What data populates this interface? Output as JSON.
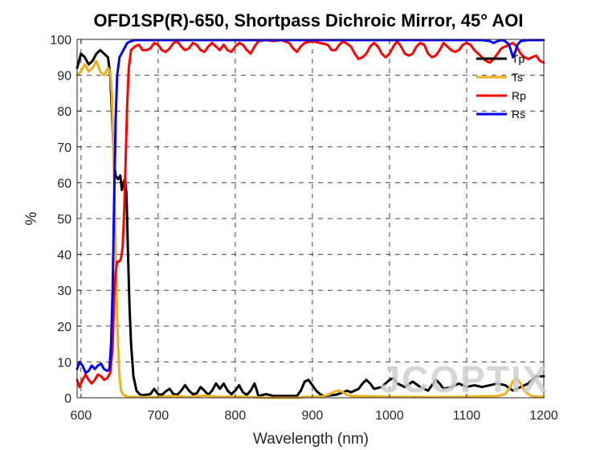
{
  "chart_data": {
    "type": "line",
    "title": "OFD1SP(R)-650, Shortpass Dichroic Mirror, 45° AOI",
    "xlabel": "Wavelength (nm)",
    "ylabel": "%",
    "xlim": [
      595,
      1200
    ],
    "ylim": [
      0,
      100
    ],
    "x_ticks": [
      600,
      700,
      800,
      900,
      1000,
      1100,
      1200
    ],
    "y_ticks": [
      0,
      10,
      20,
      30,
      40,
      50,
      60,
      70,
      80,
      90,
      100
    ],
    "grid": "dashed",
    "legend_position": "top-right",
    "watermark": "JCOPTIX",
    "series": [
      {
        "name": "Tp",
        "color": "#000000",
        "points": [
          [
            595,
            92
          ],
          [
            600,
            96
          ],
          [
            605,
            95
          ],
          [
            610,
            93
          ],
          [
            615,
            94
          ],
          [
            620,
            96
          ],
          [
            625,
            97
          ],
          [
            630,
            96
          ],
          [
            635,
            95
          ],
          [
            638,
            90
          ],
          [
            641,
            75
          ],
          [
            643,
            65
          ],
          [
            645,
            62
          ],
          [
            648,
            61
          ],
          [
            651,
            62
          ],
          [
            653,
            58
          ],
          [
            655,
            60
          ],
          [
            657,
            61
          ],
          [
            659,
            57
          ],
          [
            661,
            40
          ],
          [
            663,
            25
          ],
          [
            665,
            15
          ],
          [
            668,
            6
          ],
          [
            672,
            2
          ],
          [
            676,
            1
          ],
          [
            680,
            0.7
          ],
          [
            690,
            1
          ],
          [
            695,
            2.5
          ],
          [
            700,
            1
          ],
          [
            705,
            0.8
          ],
          [
            710,
            1.8
          ],
          [
            715,
            2.5
          ],
          [
            720,
            1
          ],
          [
            725,
            0.8
          ],
          [
            730,
            2
          ],
          [
            735,
            3.5
          ],
          [
            740,
            2
          ],
          [
            745,
            1
          ],
          [
            750,
            1.2
          ],
          [
            755,
            3
          ],
          [
            760,
            2
          ],
          [
            765,
            0.8
          ],
          [
            770,
            2
          ],
          [
            775,
            4
          ],
          [
            780,
            2.5
          ],
          [
            785,
            4
          ],
          [
            790,
            2
          ],
          [
            795,
            1
          ],
          [
            800,
            2
          ],
          [
            805,
            3.5
          ],
          [
            810,
            1.5
          ],
          [
            815,
            0.8
          ],
          [
            820,
            2
          ],
          [
            825,
            4
          ],
          [
            828,
            2
          ],
          [
            830,
            0.5
          ],
          [
            840,
            1
          ],
          [
            850,
            0.5
          ],
          [
            880,
            0.5
          ],
          [
            885,
            2
          ],
          [
            890,
            4.5
          ],
          [
            895,
            5
          ],
          [
            900,
            3.5
          ],
          [
            905,
            2
          ],
          [
            910,
            1
          ],
          [
            915,
            0.5
          ],
          [
            930,
            0.8
          ],
          [
            940,
            1.5
          ],
          [
            945,
            2
          ],
          [
            950,
            1.5
          ],
          [
            960,
            2.5
          ],
          [
            965,
            4
          ],
          [
            970,
            5
          ],
          [
            975,
            4
          ],
          [
            980,
            2.5
          ],
          [
            990,
            3
          ],
          [
            1000,
            5
          ],
          [
            1005,
            5.5
          ],
          [
            1010,
            4
          ],
          [
            1020,
            3
          ],
          [
            1030,
            4.5
          ],
          [
            1040,
            3
          ],
          [
            1050,
            2
          ],
          [
            1055,
            3.5
          ],
          [
            1060,
            5
          ],
          [
            1065,
            4
          ],
          [
            1070,
            2.5
          ],
          [
            1080,
            3
          ],
          [
            1090,
            4
          ],
          [
            1100,
            3
          ],
          [
            1110,
            3.5
          ],
          [
            1120,
            3
          ],
          [
            1130,
            3.5
          ],
          [
            1140,
            4
          ],
          [
            1150,
            3.5
          ],
          [
            1160,
            2
          ],
          [
            1170,
            3
          ],
          [
            1180,
            4
          ],
          [
            1190,
            6
          ],
          [
            1200,
            6
          ]
        ]
      },
      {
        "name": "Ts",
        "color": "#EDB120",
        "points": [
          [
            595,
            90
          ],
          [
            600,
            91
          ],
          [
            605,
            93
          ],
          [
            610,
            91
          ],
          [
            615,
            92
          ],
          [
            620,
            94
          ],
          [
            625,
            91
          ],
          [
            630,
            90
          ],
          [
            635,
            92
          ],
          [
            638,
            91
          ],
          [
            640,
            85
          ],
          [
            642,
            70
          ],
          [
            644,
            50
          ],
          [
            646,
            30
          ],
          [
            648,
            15
          ],
          [
            650,
            6
          ],
          [
            652,
            2
          ],
          [
            655,
            0.8
          ],
          [
            660,
            0.3
          ],
          [
            680,
            0.2
          ],
          [
            700,
            0.2
          ],
          [
            720,
            0.5
          ],
          [
            740,
            0.2
          ],
          [
            760,
            0.6
          ],
          [
            780,
            0.2
          ],
          [
            800,
            0.4
          ],
          [
            820,
            0.2
          ],
          [
            840,
            0
          ],
          [
            880,
            0
          ],
          [
            895,
            0.3
          ],
          [
            910,
            0.3
          ],
          [
            920,
            0.8
          ],
          [
            930,
            1.8
          ],
          [
            935,
            2
          ],
          [
            940,
            1.5
          ],
          [
            945,
            0.8
          ],
          [
            950,
            0.5
          ],
          [
            1000,
            0.3
          ],
          [
            1050,
            0.2
          ],
          [
            1100,
            0.3
          ],
          [
            1140,
            0.5
          ],
          [
            1150,
            1
          ],
          [
            1155,
            2.5
          ],
          [
            1160,
            4.5
          ],
          [
            1165,
            5.5
          ],
          [
            1170,
            4
          ],
          [
            1175,
            2
          ],
          [
            1180,
            1
          ],
          [
            1185,
            0.4
          ],
          [
            1200,
            0.3
          ]
        ]
      },
      {
        "name": "Rp",
        "color": "#FF0000",
        "points": [
          [
            595,
            5
          ],
          [
            598,
            3
          ],
          [
            602,
            5
          ],
          [
            606,
            6.5
          ],
          [
            610,
            5
          ],
          [
            614,
            4
          ],
          [
            618,
            5
          ],
          [
            622,
            6.5
          ],
          [
            626,
            6
          ],
          [
            630,
            5
          ],
          [
            634,
            5.5
          ],
          [
            638,
            7
          ],
          [
            641,
            14
          ],
          [
            643,
            28
          ],
          [
            645,
            35
          ],
          [
            647,
            38
          ],
          [
            650,
            38
          ],
          [
            652,
            39
          ],
          [
            654,
            42
          ],
          [
            656,
            52
          ],
          [
            658,
            67
          ],
          [
            660,
            82
          ],
          [
            662,
            92
          ],
          [
            665,
            97
          ],
          [
            670,
            98
          ],
          [
            675,
            98.5
          ],
          [
            680,
            97
          ],
          [
            685,
            97
          ],
          [
            690,
            97.5
          ],
          [
            695,
            99
          ],
          [
            700,
            98.5
          ],
          [
            705,
            97
          ],
          [
            710,
            96.5
          ],
          [
            715,
            97.5
          ],
          [
            720,
            99
          ],
          [
            725,
            99.5
          ],
          [
            730,
            98
          ],
          [
            735,
            97
          ],
          [
            740,
            97.5
          ],
          [
            745,
            99
          ],
          [
            750,
            98.5
          ],
          [
            755,
            97
          ],
          [
            760,
            96.5
          ],
          [
            765,
            98
          ],
          [
            770,
            99
          ],
          [
            775,
            98
          ],
          [
            780,
            97
          ],
          [
            785,
            98.5
          ],
          [
            790,
            97
          ],
          [
            795,
            96.5
          ],
          [
            800,
            98
          ],
          [
            805,
            99
          ],
          [
            810,
            98.5
          ],
          [
            815,
            97
          ],
          [
            820,
            96
          ],
          [
            825,
            98
          ],
          [
            830,
            99.5
          ],
          [
            840,
            99.8
          ],
          [
            850,
            99.5
          ],
          [
            860,
            99.8
          ],
          [
            870,
            99
          ],
          [
            875,
            97.5
          ],
          [
            880,
            96.5
          ],
          [
            885,
            98
          ],
          [
            890,
            99
          ],
          [
            900,
            99.5
          ],
          [
            910,
            99
          ],
          [
            920,
            98.5
          ],
          [
            925,
            97
          ],
          [
            930,
            97
          ],
          [
            935,
            98.5
          ],
          [
            940,
            99.5
          ],
          [
            950,
            98
          ],
          [
            955,
            96
          ],
          [
            960,
            94.5
          ],
          [
            965,
            95
          ],
          [
            970,
            96
          ],
          [
            975,
            98
          ],
          [
            980,
            99
          ],
          [
            985,
            98
          ],
          [
            990,
            96
          ],
          [
            995,
            95
          ],
          [
            1000,
            96
          ],
          [
            1005,
            98
          ],
          [
            1010,
            99.5
          ],
          [
            1015,
            98
          ],
          [
            1020,
            96
          ],
          [
            1025,
            95.5
          ],
          [
            1030,
            96
          ],
          [
            1035,
            98
          ],
          [
            1040,
            99
          ],
          [
            1045,
            98.5
          ],
          [
            1050,
            96
          ],
          [
            1055,
            95
          ],
          [
            1060,
            95.5
          ],
          [
            1065,
            97
          ],
          [
            1070,
            99
          ],
          [
            1075,
            98
          ],
          [
            1080,
            97
          ],
          [
            1085,
            96.5
          ],
          [
            1090,
            97
          ],
          [
            1095,
            98.5
          ],
          [
            1100,
            99
          ],
          [
            1105,
            98.5
          ],
          [
            1110,
            97
          ],
          [
            1115,
            96
          ],
          [
            1120,
            95
          ],
          [
            1125,
            94
          ],
          [
            1130,
            93.5
          ],
          [
            1135,
            94.5
          ],
          [
            1140,
            96
          ],
          [
            1145,
            97.5
          ],
          [
            1150,
            98
          ],
          [
            1155,
            98.5
          ],
          [
            1160,
            99
          ],
          [
            1165,
            98
          ],
          [
            1170,
            96
          ],
          [
            1175,
            95
          ],
          [
            1180,
            94.5
          ],
          [
            1185,
            95
          ],
          [
            1190,
            95.5
          ],
          [
            1195,
            94
          ],
          [
            1200,
            93.5
          ]
        ]
      },
      {
        "name": "Rs",
        "color": "#0000FF",
        "points": [
          [
            595,
            8
          ],
          [
            598,
            10
          ],
          [
            602,
            9
          ],
          [
            606,
            7
          ],
          [
            610,
            7.5
          ],
          [
            614,
            9
          ],
          [
            618,
            8
          ],
          [
            622,
            9
          ],
          [
            626,
            9.5
          ],
          [
            630,
            8
          ],
          [
            634,
            7.5
          ],
          [
            637,
            8
          ],
          [
            639,
            15
          ],
          [
            641,
            30
          ],
          [
            643,
            55
          ],
          [
            645,
            78
          ],
          [
            647,
            90
          ],
          [
            650,
            95
          ],
          [
            655,
            97
          ],
          [
            660,
            99
          ],
          [
            665,
            99.5
          ],
          [
            670,
            99.8
          ],
          [
            680,
            99.8
          ],
          [
            700,
            99.8
          ],
          [
            750,
            99.8
          ],
          [
            800,
            99.8
          ],
          [
            850,
            99.8
          ],
          [
            900,
            99.8
          ],
          [
            950,
            99.8
          ],
          [
            1000,
            99.8
          ],
          [
            1050,
            99.8
          ],
          [
            1100,
            99.8
          ],
          [
            1120,
            99.8
          ],
          [
            1130,
            99.5
          ],
          [
            1135,
            99
          ],
          [
            1140,
            99.5
          ],
          [
            1145,
            99.8
          ],
          [
            1150,
            99.5
          ],
          [
            1155,
            98.5
          ],
          [
            1158,
            96.5
          ],
          [
            1160,
            95
          ],
          [
            1163,
            96.5
          ],
          [
            1166,
            98.5
          ],
          [
            1170,
            99.5
          ],
          [
            1180,
            99.8
          ],
          [
            1200,
            99.8
          ]
        ]
      }
    ]
  }
}
